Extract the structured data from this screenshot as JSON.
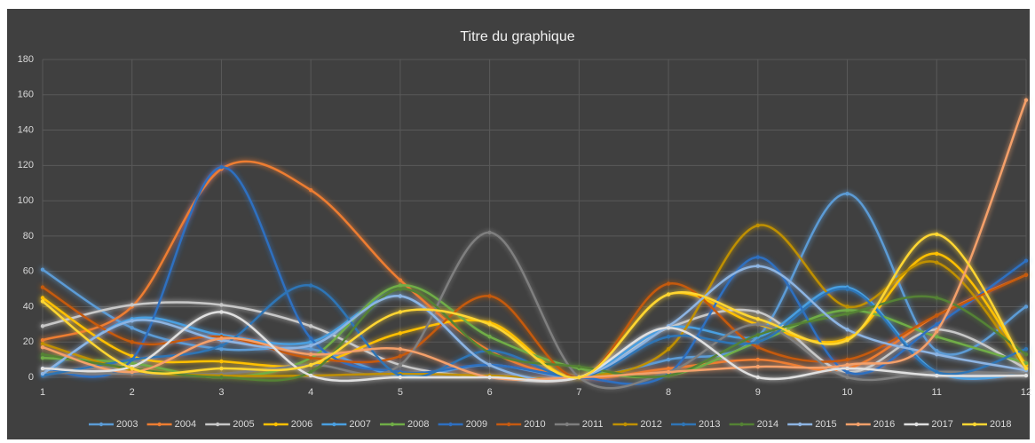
{
  "chart_data": {
    "type": "line",
    "title": "Titre du graphique",
    "x": [
      1,
      2,
      3,
      4,
      5,
      6,
      7,
      8,
      9,
      10,
      11,
      12
    ],
    "xlim": [
      1,
      12
    ],
    "xticks": [
      1,
      2,
      3,
      4,
      5,
      6,
      7,
      8,
      9,
      10,
      11,
      12
    ],
    "ylim": [
      0,
      180
    ],
    "yticks": [
      0,
      20,
      40,
      60,
      80,
      100,
      120,
      140,
      160,
      180
    ],
    "grid": true,
    "smooth": true,
    "legend": "bottom",
    "series": [
      {
        "name": "2003",
        "color": "#5b9bd5",
        "values": [
          61,
          28,
          16,
          16,
          1,
          7,
          0,
          10,
          23,
          104,
          15,
          40
        ]
      },
      {
        "name": "2004",
        "color": "#ed7d31",
        "values": [
          21,
          40,
          118,
          106,
          55,
          15,
          0,
          5,
          10,
          5,
          35,
          58
        ]
      },
      {
        "name": "2005",
        "color": "#c8c8c8",
        "values": [
          29,
          41,
          41,
          29,
          7,
          0,
          0,
          28,
          37,
          3,
          27,
          5
        ]
      },
      {
        "name": "2006",
        "color": "#ffc000",
        "values": [
          45,
          12,
          9,
          7,
          25,
          31,
          0,
          47,
          30,
          22,
          70,
          7
        ]
      },
      {
        "name": "2007",
        "color": "#4a9fe0",
        "values": [
          1,
          33,
          24,
          20,
          46,
          7,
          0,
          28,
          23,
          51,
          3,
          2
        ]
      },
      {
        "name": "2008",
        "color": "#70ad47",
        "values": [
          11,
          8,
          0,
          11,
          52,
          23,
          5,
          1,
          20,
          38,
          23,
          8
        ]
      },
      {
        "name": "2009",
        "color": "#2e6fc0",
        "values": [
          5,
          10,
          119,
          22,
          3,
          7,
          0,
          2,
          68,
          3,
          30,
          66
        ]
      },
      {
        "name": "2010",
        "color": "#c55a11",
        "values": [
          51,
          20,
          23,
          11,
          12,
          46,
          0,
          53,
          17,
          10,
          35,
          58
        ]
      },
      {
        "name": "2011",
        "color": "#7f7f7f",
        "values": [
          3,
          2,
          2,
          7,
          7,
          82,
          0,
          3,
          30,
          0,
          3,
          2
        ]
      },
      {
        "name": "2012",
        "color": "#bf9000",
        "values": [
          19,
          4,
          1,
          1,
          2,
          1,
          0,
          16,
          86,
          40,
          65,
          5
        ]
      },
      {
        "name": "2013",
        "color": "#2f75b5",
        "values": [
          1,
          10,
          18,
          52,
          1,
          15,
          0,
          23,
          20,
          50,
          3,
          16
        ]
      },
      {
        "name": "2014",
        "color": "#548235",
        "values": [
          13,
          5,
          0,
          3,
          50,
          14,
          6,
          1,
          24,
          36,
          45,
          13
        ]
      },
      {
        "name": "2015",
        "color": "#8db4e2",
        "values": [
          2,
          32,
          21,
          18,
          46,
          7,
          0,
          29,
          63,
          27,
          13,
          4
        ]
      },
      {
        "name": "2016",
        "color": "#f4a06a",
        "values": [
          17,
          3,
          22,
          13,
          16,
          0,
          0,
          3,
          6,
          7,
          26,
          157
        ]
      },
      {
        "name": "2017",
        "color": "#e0e0e0",
        "values": [
          5,
          6,
          37,
          1,
          0,
          0,
          0,
          28,
          0,
          5,
          1,
          1
        ]
      },
      {
        "name": "2018",
        "color": "#ffd633",
        "values": [
          43,
          5,
          5,
          7,
          37,
          30,
          0,
          47,
          33,
          21,
          81,
          5
        ]
      }
    ]
  }
}
